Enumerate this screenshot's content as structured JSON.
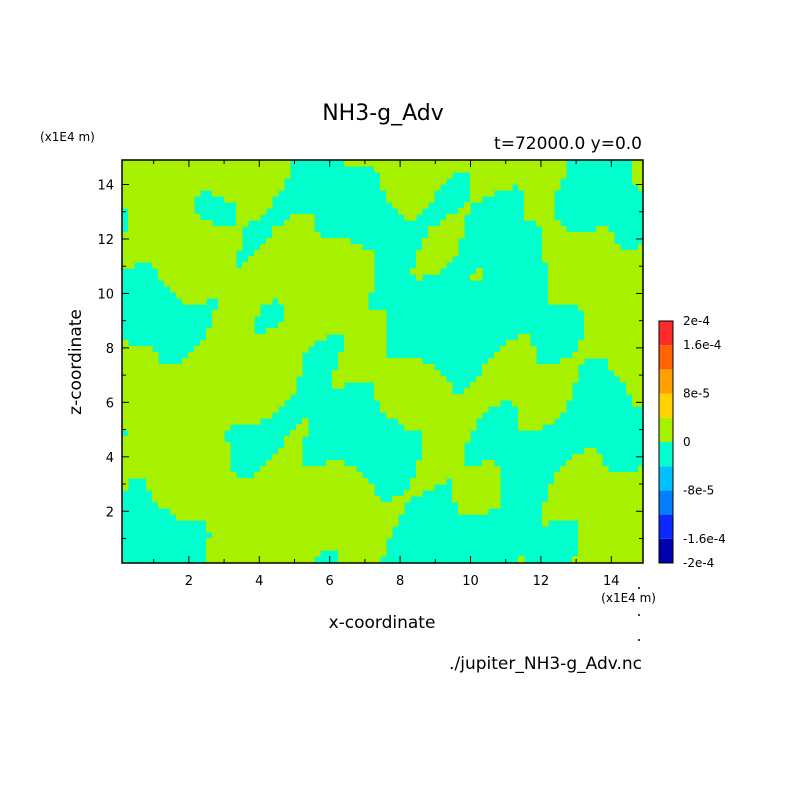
{
  "chart_data": {
    "type": "heatmap",
    "title": "NH3-g_Adv",
    "subtitle": "t=72000.0 y=0.0",
    "xlabel": "x-coordinate",
    "ylabel": "z-coordinate",
    "x_unit": "(x1E4 m)",
    "y_unit": "(x1E4 m)",
    "xlim": [
      0.1,
      14.9
    ],
    "ylim": [
      0.1,
      14.9
    ],
    "x_ticks": [
      {
        "value": 2,
        "label": "2"
      },
      {
        "value": 4,
        "label": "4"
      },
      {
        "value": 6,
        "label": "6"
      },
      {
        "value": 8,
        "label": "8"
      },
      {
        "value": 10,
        "label": "10"
      },
      {
        "value": 12,
        "label": "12"
      },
      {
        "value": 14,
        "label": "14"
      }
    ],
    "y_ticks": [
      {
        "value": 2,
        "label": "2"
      },
      {
        "value": 4,
        "label": "4"
      },
      {
        "value": 6,
        "label": "6"
      },
      {
        "value": 8,
        "label": "8"
      },
      {
        "value": 10,
        "label": "10"
      },
      {
        "value": 12,
        "label": "12"
      },
      {
        "value": 14,
        "label": "14"
      }
    ],
    "colorbar": {
      "levels": [
        -0.0002,
        -0.00016,
        -0.00012,
        -8e-05,
        -4e-05,
        0,
        4e-05,
        8e-05,
        0.00012,
        0.00016,
        0.0002
      ],
      "colors": [
        "#0000b0",
        "#0a28ff",
        "#0080ff",
        "#00c0ff",
        "#00ffcc",
        "#a6f000",
        "#ffd200",
        "#ffa000",
        "#ff6400",
        "#ff2a2a"
      ],
      "tick_labels": [
        {
          "value": 0.0002,
          "label": "2e-4"
        },
        {
          "value": 0.00016,
          "label": "1.6e-4"
        },
        {
          "value": 8e-05,
          "label": "8e-5"
        },
        {
          "value": 0,
          "label": "0"
        },
        {
          "value": -8e-05,
          "label": "-8e-5"
        },
        {
          "value": -0.00016,
          "label": "-1.6e-4"
        },
        {
          "value": -0.0002,
          "label": "-2e-4"
        }
      ]
    },
    "field_note": "values in displayed region fall in bands [-4e-5, 0] (cyan) and [0, 4e-5] (yellow-green)"
  },
  "file_label": "./jupiter_NH3-g_Adv.nc"
}
